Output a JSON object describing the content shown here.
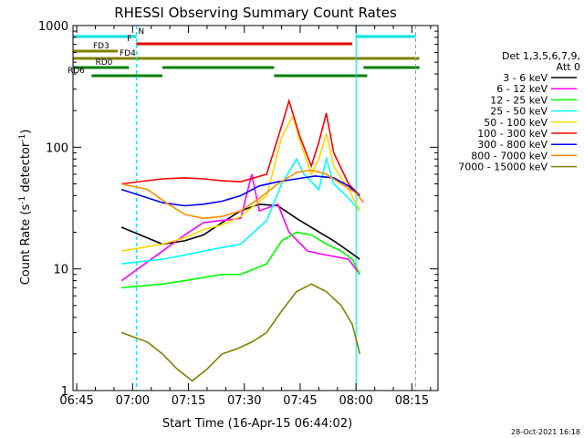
{
  "chart_data": {
    "type": "line",
    "title": "RHESSI Observing Summary Count Rates",
    "xlabel": "Start Time (16-Apr-15 06:44:02)",
    "ylabel_main": "Count Rate (s",
    "ylabel_sup": "-1",
    "ylabel_tail": " detector",
    "ylabel_sup2": "-1",
    "ylabel_close": ")",
    "x_ticks": [
      "06:45",
      "07:00",
      "07:15",
      "07:30",
      "07:45",
      "08:00",
      "08:15"
    ],
    "x_tick_minutes": [
      1,
      16,
      31,
      46,
      61,
      76,
      91
    ],
    "xlim_minutes": [
      0,
      98
    ],
    "y_scale": "log",
    "ylim": [
      1,
      1000
    ],
    "y_ticks": [
      "1",
      "10",
      "100",
      "1000"
    ],
    "legend_placement": "right",
    "legend_header": [
      "Det 1,3,5,6,7,9,",
      "Att 0"
    ],
    "timestamp": "28-Oct-2021 16:18",
    "flags": [
      {
        "label": "N",
        "color": "#00e0e0",
        "segments": [
          [
            0,
            17
          ],
          [
            76,
            92
          ]
        ]
      },
      {
        "label": "F",
        "color": "#e00000",
        "segments": [
          [
            17,
            75
          ]
        ]
      },
      {
        "label": "FD3",
        "color": "#808000",
        "segments": [
          [
            0,
            12
          ]
        ]
      },
      {
        "label": "FD4",
        "color": "#808000",
        "segments": [
          [
            0,
            93
          ]
        ]
      },
      {
        "label": "RD0",
        "color": "#008000",
        "segments": [
          [
            0,
            15
          ],
          [
            24,
            54
          ],
          [
            78,
            93
          ]
        ]
      },
      {
        "label": "RD6",
        "color": "#008000",
        "segments": [
          [
            5,
            24
          ],
          [
            54,
            79
          ]
        ]
      }
    ],
    "event_lines_minutes": [
      0,
      17,
      76,
      92
    ],
    "series": [
      {
        "name": "3 - 6 keV",
        "color": "#000000",
        "x": [
          13,
          24,
          30,
          35,
          40,
          45,
          50,
          55,
          60,
          65,
          70,
          74,
          77
        ],
        "y": [
          22,
          16,
          17,
          19,
          24,
          30,
          34,
          33,
          26,
          21,
          17,
          14,
          12
        ]
      },
      {
        "name": "6 - 12 keV",
        "color": "#ff00ff",
        "x": [
          13,
          24,
          30,
          35,
          40,
          45,
          48,
          50,
          55,
          58,
          63,
          68,
          74,
          77
        ],
        "y": [
          8,
          14,
          19,
          24,
          25,
          26,
          60,
          30,
          34,
          20,
          14,
          13,
          12,
          9
        ]
      },
      {
        "name": "12 - 25 keV",
        "color": "#00ff00",
        "x": [
          13,
          24,
          30,
          35,
          40,
          45,
          52,
          56,
          60,
          64,
          68,
          72,
          75,
          77
        ],
        "y": [
          7,
          7.5,
          8,
          8.5,
          9,
          9,
          11,
          17,
          20,
          19,
          16,
          14,
          12,
          9
        ]
      },
      {
        "name": "25 - 50 keV",
        "color": "#00ffff",
        "x": [
          13,
          24,
          30,
          35,
          40,
          45,
          52,
          56,
          60,
          62,
          66,
          68,
          70,
          74,
          77
        ],
        "y": [
          11,
          12,
          13,
          14,
          15,
          16,
          25,
          50,
          80,
          60,
          45,
          80,
          50,
          38,
          30
        ]
      },
      {
        "name": "50 - 100 keV",
        "color": "#ffd700",
        "x": [
          13,
          24,
          30,
          35,
          40,
          45,
          52,
          56,
          59,
          61,
          64,
          66,
          68,
          70,
          74,
          77
        ],
        "y": [
          14,
          16,
          18,
          21,
          23,
          27,
          40,
          120,
          180,
          110,
          60,
          80,
          130,
          70,
          45,
          30
        ]
      },
      {
        "name": "100 - 300 keV",
        "color": "#ff0000",
        "x": [
          13,
          24,
          30,
          35,
          40,
          45,
          52,
          56,
          58,
          61,
          64,
          66,
          68,
          70,
          74,
          77
        ],
        "y": [
          50,
          55,
          56,
          55,
          53,
          52,
          60,
          150,
          240,
          120,
          70,
          110,
          190,
          90,
          50,
          40
        ]
      },
      {
        "name": "300 - 800 keV",
        "color": "#0000ff",
        "x": [
          13,
          24,
          30,
          35,
          40,
          45,
          50,
          55,
          60,
          65,
          70,
          74,
          77
        ],
        "y": [
          45,
          35,
          33,
          34,
          36,
          40,
          48,
          52,
          55,
          58,
          56,
          48,
          40
        ]
      },
      {
        "name": "800 - 7000 keV",
        "color": "#ff8c00",
        "x": [
          13,
          20,
          25,
          30,
          35,
          40,
          45,
          50,
          55,
          60,
          64,
          68,
          72,
          76,
          78
        ],
        "y": [
          50,
          45,
          35,
          28,
          26,
          27,
          30,
          38,
          50,
          62,
          65,
          60,
          50,
          42,
          35
        ]
      },
      {
        "name": "7000 - 15000 keV",
        "color": "#808000",
        "x": [
          13,
          20,
          24,
          28,
          32,
          36,
          40,
          44,
          48,
          52,
          56,
          60,
          64,
          68,
          72,
          75,
          77
        ],
        "y": [
          3,
          2.5,
          2,
          1.5,
          1.2,
          1.5,
          2,
          2.2,
          2.5,
          3,
          4.5,
          6.5,
          7.5,
          6.5,
          5,
          3.5,
          2
        ]
      }
    ]
  }
}
